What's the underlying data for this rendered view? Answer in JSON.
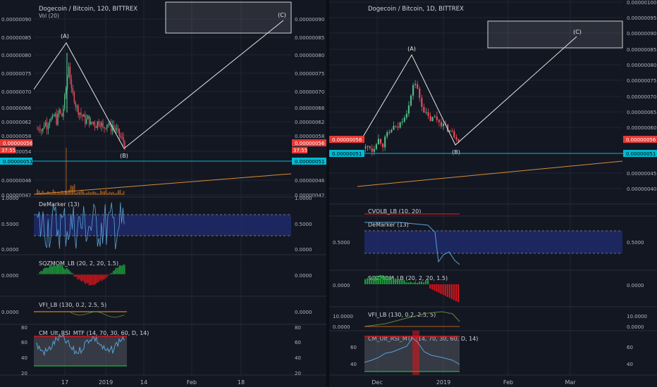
{
  "colors": {
    "bg": "#131722",
    "grid": "#1f2533",
    "up": "#53b987",
    "down": "#eb4d5c",
    "pattern": "#e6e6e6",
    "support": "#00bcd4",
    "trend": "#d98c38",
    "dm_line": "#5aa1d6",
    "dm_band": "#1f2a6b",
    "sqz_up": "#1e9d3c",
    "sqz_down": "#d1151c",
    "vfi": "#e07b1c",
    "vfi_line": "#5b8a3a",
    "rsi": "#5aa1d6",
    "rsi_upper": "#d1151c",
    "rsi_lower": "#1e9d3c",
    "price_tag": "#e53935",
    "support_tag": "#00bcd4"
  },
  "chart_data": [
    {
      "id": "left",
      "type": "candlestick",
      "title": "Dogecoin / Bitcoin, 120, BITTREX",
      "volume_label": "Vol (20)",
      "x_ticks": [
        "17",
        "2019",
        "14",
        "Feb",
        "18"
      ],
      "y_ticks_left": [
        "0.00000090",
        "0.00000085",
        "0.00000080",
        "0.00000075",
        "0.00000070",
        "0.00000066",
        "0.00000062",
        "0.00000058",
        "0.00000054",
        "0.00000046",
        "0.00000042"
      ],
      "y_ticks_right": [
        "0.00000090",
        "0.00000085",
        "0.00000080",
        "0.00000075",
        "0.00000070",
        "0.00000066",
        "0.00000062",
        "0.00000058",
        "0.00000046",
        "0.00000042"
      ],
      "ylim": [
        4.2e-07,
        9e-07
      ],
      "price_tag": "0.00000056",
      "price_tag_time": "37:55",
      "support_tag": "0.00000051",
      "points": [
        {
          "label": "(A)",
          "value": 8e-07
        },
        {
          "label": "(B)",
          "value": 5.5e-07
        },
        {
          "label": "(C)",
          "value": 8.8e-07
        }
      ],
      "price_series": [
        6e-07,
        6.1e-07,
        5.9e-07,
        6.2e-07,
        6.1e-07,
        6.3e-07,
        6.2e-07,
        6.4e-07,
        6.2e-07,
        6.5e-07,
        6.3e-07,
        6.7e-07,
        7.2e-07,
        7.8e-07,
        7e-07,
        6.9e-07,
        6.6e-07,
        6.5e-07,
        6.4e-07,
        6.3e-07,
        6.2e-07,
        6.3e-07,
        6.1e-07,
        6.2e-07,
        6.1e-07,
        6.2e-07,
        6.2e-07,
        6e-07,
        6.1e-07,
        6.2e-07,
        6e-07,
        6.1e-07,
        6e-07,
        5.9e-07,
        5.8e-07,
        5.7e-07,
        5.6e-07
      ],
      "panels": [
        {
          "name": "DeMarker (13)",
          "ticks": [
            "1.0000",
            "0.5000",
            "0.0000"
          ]
        },
        {
          "name": "SQZMOM_LB (20, 2, 20, 1.5)",
          "ticks": [
            "0.0000"
          ]
        },
        {
          "name": "VFI_LB (130, 0.2, 2.5, 5)",
          "ticks": [
            "0.0000"
          ]
        },
        {
          "name": "CM_Ult_RSI_MTF (14, 70, 30, 60, D, 14)",
          "ticks": [
            "80",
            "60",
            "40",
            "20"
          ]
        }
      ]
    },
    {
      "id": "right",
      "type": "candlestick",
      "title": "Dogecoin / Bitcoin, 1D, BITTREX",
      "x_ticks": [
        "Dec",
        "2019",
        "Feb",
        "Mar"
      ],
      "y_ticks_right": [
        "0.00000100",
        "0.00000095",
        "0.00000090",
        "0.00000085",
        "0.00000080",
        "0.00000075",
        "0.00000070",
        "0.00000065",
        "0.00000060",
        "0.00000045",
        "0.00000040"
      ],
      "ylim": [
        4e-07,
        1e-06
      ],
      "price_tag": "0.00000056",
      "support_tag": "0.00000051",
      "points": [
        {
          "label": "(A)",
          "value": 8.3e-07
        },
        {
          "label": "(B)",
          "value": 5.5e-07
        },
        {
          "label": "(C)",
          "value": 8.8e-07
        }
      ],
      "price_series": [
        5.3e-07,
        5.4e-07,
        5.2e-07,
        5.5e-07,
        5.6e-07,
        5.4e-07,
        5.7e-07,
        5.8e-07,
        6e-07,
        5.9e-07,
        6.1e-07,
        6.3e-07,
        6.5e-07,
        6.8e-07,
        7.5e-07,
        7.2e-07,
        6.8e-07,
        6.5e-07,
        6.3e-07,
        6.2e-07,
        6.3e-07,
        6.2e-07,
        6.1e-07,
        6e-07,
        5.9e-07,
        5.8e-07,
        5.7e-07,
        5.6e-07
      ],
      "panels": [
        {
          "name": "CVOLB_LB (10, 20)",
          "ticks": []
        },
        {
          "name": "DeMarker (13)",
          "ticks": [
            "0.5000"
          ]
        },
        {
          "name": "SQZMOM_LB (20, 2, 20, 1.5)",
          "ticks": [
            "0.0000"
          ]
        },
        {
          "name": "VFI_LB (130, 0.2, 2.5, 5)",
          "ticks": [
            "10.0000",
            "0.0000"
          ]
        },
        {
          "name": "CM_Ult_RSI_MTF (14, 70, 30, 60, D, 14)",
          "ticks": [
            "60",
            "40"
          ]
        }
      ]
    }
  ]
}
